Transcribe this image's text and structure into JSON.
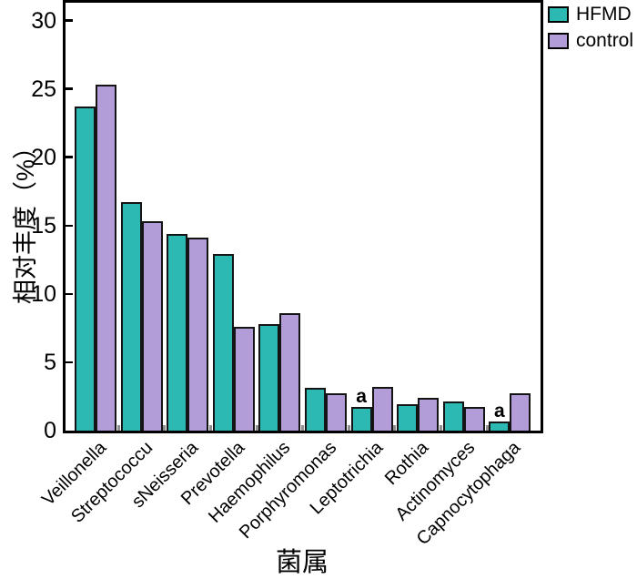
{
  "chart_data": {
    "type": "bar",
    "title": "",
    "xlabel": "菌属",
    "ylabel": "相对丰度（%）",
    "categories": [
      "Veillonella",
      "Streptococcu",
      "sNeisseria",
      "Prevotella",
      "Haemophilus",
      "Porphyromonas",
      "Leptotrichia",
      "Rothia",
      "Actinomyces",
      "Capnocytophaga"
    ],
    "series": [
      {
        "name": "HFMD",
        "color": "#2db9b3",
        "values": [
          23.7,
          16.7,
          14.4,
          12.9,
          7.8,
          3.1,
          1.7,
          1.9,
          2.1,
          0.7
        ]
      },
      {
        "name": "control",
        "color": "#b29dd8",
        "values": [
          25.3,
          15.3,
          14.1,
          7.6,
          8.6,
          2.7,
          3.2,
          2.4,
          1.7,
          2.7
        ]
      }
    ],
    "ylim": [
      0,
      31.3
    ],
    "yticks": [
      0,
      5,
      10,
      15,
      20,
      25,
      30
    ],
    "grid": false,
    "legend_position": "top-right",
    "x_tick_style": "gray nubs at group boundaries",
    "annotations": [
      {
        "text": "a",
        "series": "HFMD",
        "category": "Leptotrichia"
      },
      {
        "text": "a",
        "series": "HFMD",
        "category": "Capnocytophaga"
      }
    ],
    "bar_edge_color": "#141414",
    "axis_color": "#000000"
  }
}
